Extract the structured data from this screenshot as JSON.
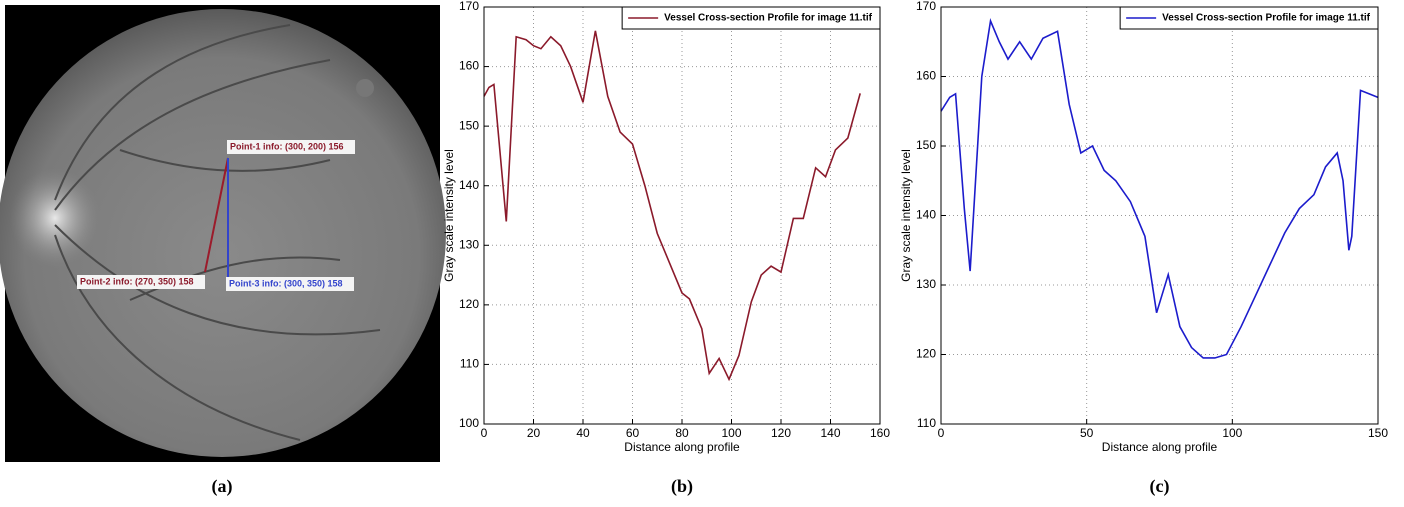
{
  "image_panel": {
    "caption": "(a)",
    "annotations": [
      "Point-1 info: (300, 200) 156",
      "Point-2 info: (270, 350) 158",
      "Point-3 info: (300, 350) 158"
    ]
  },
  "chart_data": [
    {
      "type": "line",
      "caption": "(b)",
      "x_label": "Distance along profile",
      "y_label": "Gray scale intensity level",
      "xlim": [
        0,
        160
      ],
      "xticks": [
        0,
        20,
        40,
        60,
        80,
        100,
        120,
        140,
        160
      ],
      "ylim": [
        100,
        170
      ],
      "yticks": [
        100,
        110,
        120,
        130,
        140,
        150,
        160,
        170
      ],
      "grid": true,
      "legend": "top-right",
      "x": [
        0,
        2,
        4,
        9,
        13,
        17,
        20,
        23,
        27,
        31,
        35,
        40,
        45,
        50,
        55,
        60,
        65,
        70,
        75,
        80,
        83,
        88,
        91,
        95,
        99,
        103,
        108,
        112,
        116,
        120,
        125,
        129,
        134,
        138,
        142,
        147,
        152
      ],
      "series": [
        {
          "name": "Vessel Cross-section Profile for image 11.tif",
          "color": "#8b1a2b",
          "values": [
            155,
            156.5,
            157,
            134,
            165,
            164.5,
            163.5,
            163,
            165,
            163.5,
            160,
            154,
            166,
            155,
            149,
            147,
            140,
            132,
            127,
            122,
            121,
            116,
            108.5,
            111,
            107.5,
            111.5,
            120.5,
            125,
            126.5,
            125.5,
            134.5,
            134.5,
            143,
            141.5,
            146,
            148,
            155.5
          ]
        }
      ]
    },
    {
      "type": "line",
      "caption": "(c)",
      "x_label": "Distance along profile",
      "y_label": "Gray scale intensity level",
      "xlim": [
        0,
        150
      ],
      "xticks": [
        0,
        50,
        100,
        150
      ],
      "ylim": [
        110,
        170
      ],
      "yticks": [
        110,
        120,
        130,
        140,
        150,
        160,
        170
      ],
      "grid": true,
      "legend": "top-right",
      "x": [
        0,
        3,
        5,
        8,
        10,
        14,
        17,
        20,
        23,
        27,
        31,
        35,
        40,
        44,
        48,
        52,
        56,
        60,
        65,
        70,
        74,
        78,
        82,
        86,
        90,
        94,
        98,
        103,
        108,
        113,
        118,
        123,
        128,
        132,
        136,
        138,
        140,
        141,
        144,
        147,
        150
      ],
      "series": [
        {
          "name": "Vessel Cross-section Profile for image 11.tif",
          "color": "#1c1ccc",
          "values": [
            155,
            157,
            157.5,
            141,
            132,
            160,
            168,
            165,
            162.5,
            165,
            162.5,
            165.5,
            166.5,
            156,
            149,
            150,
            146.5,
            145,
            142,
            137,
            126,
            131.5,
            124,
            121,
            119.5,
            119.5,
            120,
            124,
            128.5,
            133,
            137.5,
            141,
            143,
            147,
            149,
            145,
            135,
            137,
            158,
            157.5,
            157
          ]
        }
      ]
    }
  ]
}
